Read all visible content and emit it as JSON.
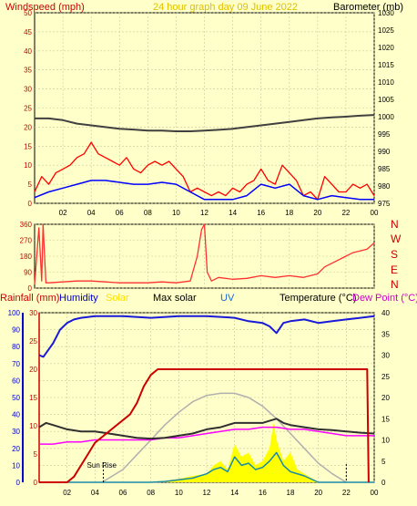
{
  "header": {
    "windspeed_label": "Windspeed (mph)",
    "title": "24 hour graph day   09 June 2022",
    "barometer_label": "Barometer (mb)"
  },
  "lower_header": {
    "rainfall": "Rainfall (mm)",
    "humidity": "Humidity",
    "solar": "Solar",
    "max_solar": "Max solar",
    "uv": "UV",
    "temperature": "Temperature (°C)",
    "dew_point": "Dew Point (°C)"
  },
  "annotations": {
    "sun_rise": "Sun Rise"
  },
  "direction_labels": [
    "N",
    "W",
    "S",
    "E",
    "N"
  ],
  "x_ticks": [
    "02",
    "04",
    "06",
    "08",
    "10",
    "12",
    "14",
    "16",
    "18",
    "20",
    "22",
    "00"
  ],
  "colors": {
    "background": "#ffffc9",
    "wind": "#ff0000",
    "avg_wind": "#0000ff",
    "barometer": "#404040",
    "direction": "#ff3030",
    "rain": "#cc0000",
    "humidity": "#1a1ad9",
    "solar": "#ffff00",
    "max_solar": "#b0b0b0",
    "uv": "#1a8aa8",
    "temperature": "#303030",
    "dew_point": "#ff00ff",
    "left_axis": "#cc0000",
    "humidity_axis": "#0000cc"
  },
  "chart_data": [
    {
      "type": "line",
      "x_unit": "hours",
      "xlim": [
        0,
        24
      ],
      "left_axis": {
        "label": "Windspeed (mph)",
        "ylim": [
          0,
          50
        ],
        "ticks": [
          0,
          5,
          10,
          15,
          20,
          25,
          30,
          35,
          40,
          45,
          50
        ]
      },
      "right_axis": {
        "label": "Barometer (mb)",
        "ylim": [
          975,
          1030
        ],
        "ticks": [
          975,
          980,
          985,
          990,
          995,
          1000,
          1005,
          1010,
          1015,
          1020,
          1025,
          1030
        ]
      },
      "series": [
        {
          "name": "Windspeed (mph)",
          "axis": "left",
          "x": [
            0,
            0.5,
            1,
            1.5,
            2,
            2.5,
            3,
            3.5,
            4,
            4.5,
            5,
            5.5,
            6,
            6.5,
            7,
            7.5,
            8,
            8.5,
            9,
            9.5,
            10,
            10.5,
            11,
            11.5,
            12,
            12.5,
            13,
            13.5,
            14,
            14.5,
            15,
            15.5,
            16,
            16.5,
            17,
            17.5,
            18,
            18.5,
            19,
            19.5,
            20,
            20.5,
            21,
            21.5,
            22,
            22.5,
            23,
            23.5,
            24
          ],
          "y": [
            3,
            7,
            5,
            8,
            9,
            10,
            12,
            13,
            16,
            13,
            12,
            11,
            10,
            12,
            9,
            8,
            10,
            11,
            10,
            11,
            9,
            7,
            3,
            4,
            3,
            2,
            3,
            2,
            4,
            3,
            5,
            6,
            9,
            6,
            5,
            10,
            8,
            6,
            2,
            3,
            1,
            7,
            5,
            3,
            3,
            5,
            4,
            5,
            2
          ]
        },
        {
          "name": "Average windspeed",
          "axis": "left",
          "x": [
            0,
            1,
            2,
            3,
            4,
            5,
            6,
            7,
            8,
            9,
            10,
            11,
            12,
            13,
            14,
            15,
            16,
            17,
            18,
            19,
            20,
            21,
            22,
            23,
            24
          ],
          "y": [
            1.5,
            3,
            4,
            5,
            6,
            6,
            5.5,
            5,
            5,
            5.5,
            5,
            3,
            1,
            1,
            1,
            2,
            5,
            4,
            5,
            2,
            1,
            2,
            1.5,
            1,
            1
          ]
        },
        {
          "name": "Barometer (mb)",
          "axis": "right",
          "x": [
            0,
            1,
            2,
            3,
            4,
            5,
            6,
            7,
            8,
            9,
            10,
            11,
            12,
            13,
            14,
            15,
            16,
            17,
            18,
            19,
            20,
            21,
            22,
            23,
            24
          ],
          "y": [
            999.5,
            999.5,
            999,
            998,
            997.5,
            997,
            996.5,
            996.3,
            996,
            996,
            995.8,
            995.8,
            996,
            996.2,
            996.5,
            997,
            997.5,
            998,
            998.5,
            999,
            999.5,
            999.8,
            1000,
            1000.3,
            1000.5
          ]
        }
      ]
    },
    {
      "type": "line",
      "x_unit": "hours",
      "xlim": [
        0,
        24
      ],
      "ylim": [
        0,
        360
      ],
      "y_ticks": [
        0,
        90,
        180,
        270,
        360
      ],
      "series": [
        {
          "name": "Wind direction (°)",
          "x": [
            0,
            0.3,
            0.5,
            0.6,
            0.8,
            1,
            2,
            3,
            4,
            5,
            6,
            7,
            8,
            9,
            10,
            11,
            11.5,
            11.8,
            12,
            12.2,
            12.5,
            13,
            14,
            15,
            16,
            17,
            18,
            19,
            20,
            20.5,
            21,
            22,
            22.5,
            23,
            23.5,
            24
          ],
          "y": [
            20,
            340,
            40,
            360,
            30,
            30,
            35,
            40,
            40,
            35,
            30,
            30,
            30,
            35,
            30,
            40,
            180,
            330,
            360,
            90,
            40,
            60,
            50,
            55,
            70,
            60,
            70,
            60,
            80,
            120,
            140,
            180,
            200,
            210,
            220,
            255
          ]
        }
      ]
    },
    {
      "type": "line",
      "x_unit": "hours",
      "xlim": [
        0,
        24
      ],
      "left_axis": {
        "label": "Rainfall (mm)",
        "ylim": [
          0,
          30
        ],
        "ticks": [
          0,
          5,
          10,
          15,
          20,
          25,
          30
        ]
      },
      "humidity_axis": {
        "label": "Humidity",
        "ylim": [
          0,
          100
        ],
        "ticks": [
          0,
          10,
          20,
          30,
          40,
          50,
          60,
          70,
          80,
          90,
          100
        ]
      },
      "right_axis": {
        "label": "Temperature (°C)",
        "ylim": [
          0,
          40
        ],
        "ticks": [
          0,
          5,
          10,
          15,
          20,
          25,
          30,
          35,
          40
        ]
      },
      "series": [
        {
          "name": "Rainfall (mm)",
          "axis": "left",
          "x": [
            0,
            2,
            2.5,
            3,
            3.5,
            4,
            4.5,
            5,
            5.5,
            6,
            6.5,
            7,
            7.5,
            8,
            8.5,
            9,
            23.5,
            23.6
          ],
          "y": [
            0,
            0,
            1,
            3,
            5,
            7,
            8,
            9,
            10,
            11,
            12,
            14,
            17,
            19,
            20,
            20,
            20,
            0
          ]
        },
        {
          "name": "Humidity",
          "axis": "humidity",
          "x": [
            0,
            0.3,
            1,
            1.5,
            2,
            2.5,
            3,
            4,
            5,
            6,
            8,
            10,
            12,
            14,
            15,
            16,
            16.5,
            17,
            17.5,
            18,
            19,
            20,
            21,
            22,
            23,
            24
          ],
          "y": [
            75,
            74,
            82,
            90,
            94,
            96,
            97,
            98,
            98,
            98,
            97,
            98,
            98,
            97,
            95,
            94,
            92,
            88,
            94,
            95,
            96,
            94,
            95,
            96,
            97,
            98
          ]
        },
        {
          "name": "Solar",
          "axis": "right",
          "x": [
            0,
            6,
            7,
            8,
            9,
            10,
            11,
            12,
            12.5,
            13,
            13.5,
            14,
            14.5,
            15,
            15.5,
            16,
            16.5,
            16.8,
            17,
            17.5,
            18,
            18.5,
            19,
            19.5,
            20,
            24
          ],
          "y": [
            0,
            0,
            0,
            0,
            0.3,
            0.8,
            1.5,
            2,
            4,
            5,
            3,
            9,
            6,
            7,
            4,
            5,
            8,
            14,
            10,
            5,
            7,
            3,
            2,
            1,
            0,
            0
          ]
        },
        {
          "name": "Max solar",
          "axis": "right",
          "x": [
            4.5,
            5,
            6,
            7,
            8,
            9,
            10,
            11,
            12,
            13,
            14,
            15,
            16,
            17,
            18,
            19,
            20,
            21,
            22
          ],
          "y": [
            0,
            1,
            3,
            6.5,
            10,
            13.5,
            16.5,
            19,
            20.5,
            21,
            21,
            20,
            18,
            15,
            11.5,
            8,
            4.5,
            2,
            0
          ]
        },
        {
          "name": "UV",
          "axis": "right",
          "x": [
            0,
            8,
            9,
            10,
            11,
            12,
            12.5,
            13,
            13.5,
            14,
            14.5,
            15,
            15.5,
            16,
            16.5,
            17,
            17.5,
            18,
            19,
            20,
            24
          ],
          "y": [
            0,
            0,
            0.2,
            0.6,
            1,
            2,
            3,
            3.5,
            2.5,
            6,
            4,
            4.5,
            3,
            3.5,
            5,
            7,
            4,
            2.5,
            1.5,
            0,
            0
          ]
        },
        {
          "name": "Temperature (°C)",
          "axis": "right",
          "x": [
            0,
            0.5,
            1,
            2,
            3,
            4,
            5,
            6,
            7,
            8,
            9,
            10,
            11,
            12,
            13,
            14,
            15,
            16,
            16.5,
            17,
            17.5,
            18,
            19,
            20,
            21,
            22,
            23,
            24
          ],
          "y": [
            13,
            14,
            13.5,
            12.5,
            12,
            12,
            11.5,
            11,
            10.5,
            10.3,
            10.5,
            11,
            11.5,
            12.5,
            13,
            14,
            14,
            14,
            14.5,
            15,
            14,
            13.5,
            13,
            12.5,
            12.3,
            12,
            11.7,
            11.5
          ]
        },
        {
          "name": "Dew Point (°C)",
          "axis": "right",
          "x": [
            0,
            1,
            2,
            3,
            4,
            5,
            6,
            7,
            8,
            9,
            10,
            11,
            12,
            13,
            14,
            15,
            16,
            17,
            18,
            19,
            20,
            21,
            22,
            23,
            24
          ],
          "y": [
            9,
            9,
            9.5,
            9.5,
            10,
            10,
            10,
            10,
            10,
            10.5,
            10.5,
            11,
            11.5,
            12,
            12.5,
            12.5,
            13,
            13,
            12.5,
            12.5,
            12,
            11.5,
            11,
            11,
            11
          ]
        }
      ]
    }
  ]
}
